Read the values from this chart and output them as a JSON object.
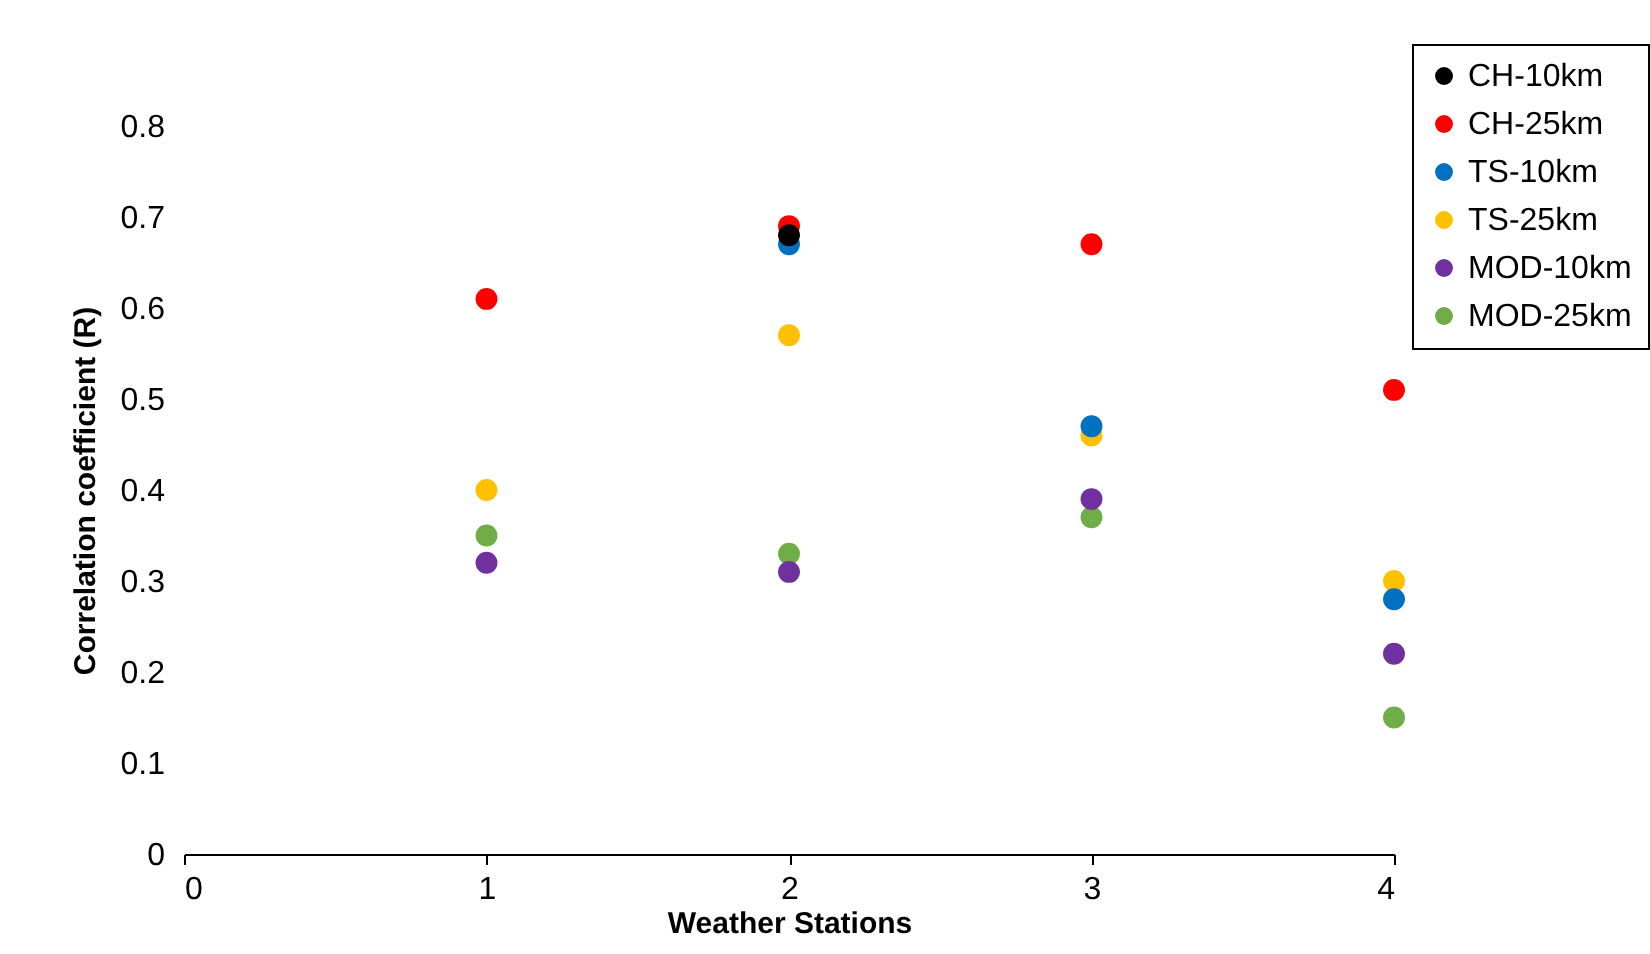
{
  "chart_data": {
    "type": "scatter",
    "xlabel": "Weather Stations",
    "ylabel": "Correlation coefficient (R)",
    "x": [
      1,
      2,
      3,
      4
    ],
    "xlim": [
      0,
      4
    ],
    "xticks": [
      0,
      1,
      2,
      3,
      4
    ],
    "ylim": [
      0,
      0.8
    ],
    "yticks": [
      0,
      0.1,
      0.2,
      0.3,
      0.4,
      0.5,
      0.6,
      0.7,
      0.8
    ],
    "grid": false,
    "legend": "top right",
    "marker": "circle",
    "series": [
      {
        "name": "CH-10km",
        "color": "#000000",
        "values": [
          null,
          0.68,
          null,
          null
        ]
      },
      {
        "name": "CH-25km",
        "color": "#ff0000",
        "values": [
          0.61,
          0.69,
          0.67,
          0.51
        ]
      },
      {
        "name": "TS-10km",
        "color": "#0070c0",
        "values": [
          null,
          0.67,
          0.47,
          0.28
        ]
      },
      {
        "name": "TS-25km",
        "color": "#ffc000",
        "values": [
          0.4,
          0.57,
          0.46,
          0.3
        ]
      },
      {
        "name": "MOD-10km",
        "color": "#7030a0",
        "values": [
          0.32,
          0.31,
          0.39,
          0.22
        ]
      },
      {
        "name": "MOD-25km",
        "color": "#70ad47",
        "values": [
          0.35,
          0.33,
          0.37,
          0.15
        ]
      }
    ]
  }
}
